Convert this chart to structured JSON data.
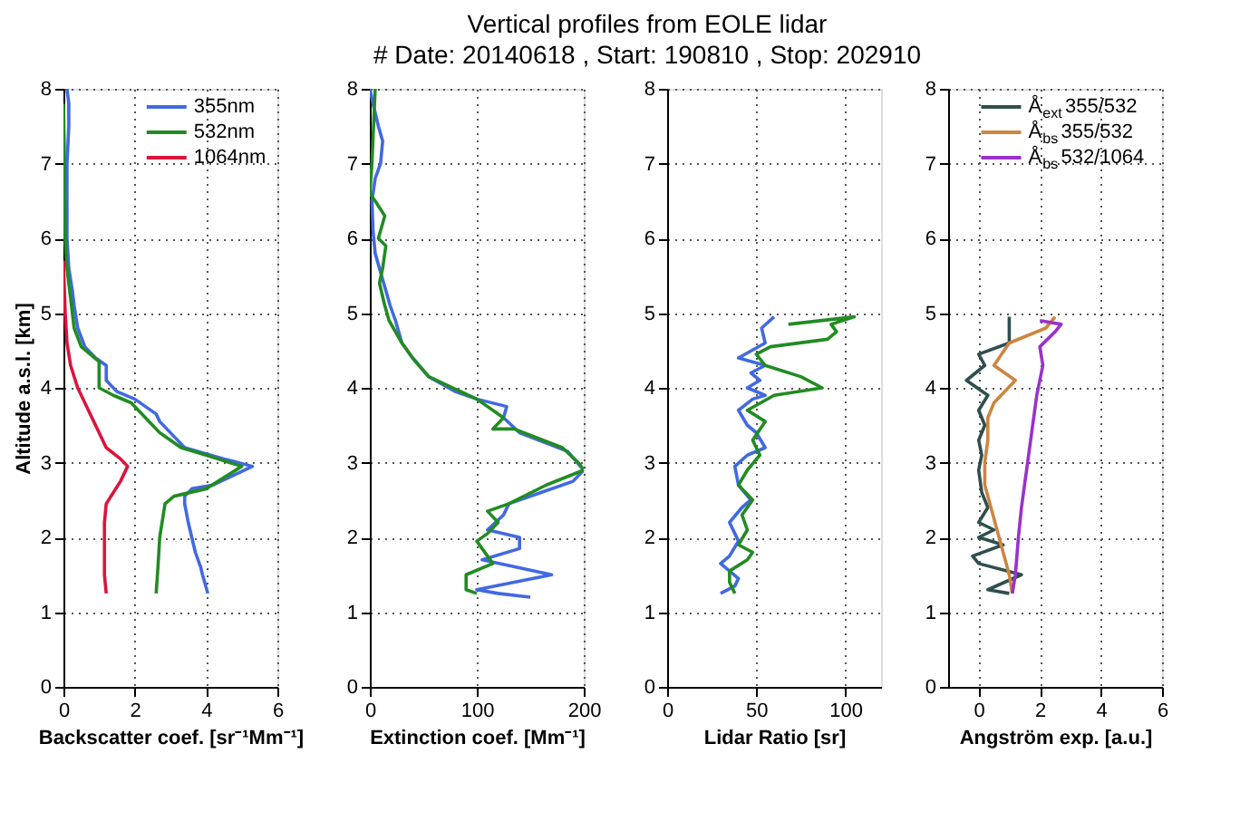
{
  "chart_data": [
    {
      "type": "other",
      "title": "Vertical profiles from EOLE lidar",
      "subtitle": "# Date:  20140618 , Start: 190810 , Stop: 202910"
    },
    {
      "type": "line",
      "xlabel": "Backscatter coef. [sr⁻¹Mm⁻¹]",
      "ylabel": "Altitude a.s.l. [km]",
      "xlim": [
        0,
        6
      ],
      "xticks": [
        0,
        2,
        4,
        6
      ],
      "ylim": [
        0,
        8
      ],
      "yticks": [
        0,
        1,
        2,
        3,
        4,
        5,
        6,
        7,
        8
      ],
      "grid": true,
      "legend": "top right",
      "series": [
        {
          "name": "355nm",
          "color": "#4169e1",
          "x": [
            4.05,
            3.9,
            3.85,
            3.7,
            3.6,
            3.5,
            3.4,
            3.4,
            3.6,
            4.2,
            5.3,
            4.5,
            3.4,
            3.1,
            2.7,
            2.6,
            2.0,
            1.5,
            1.2,
            1.2,
            0.9,
            0.6,
            0.4,
            0.3,
            0.25,
            0.15,
            0.1,
            0.1,
            0.1,
            0.15,
            0.15,
            0.1
          ],
          "values": [
            1.25,
            1.5,
            1.6,
            1.8,
            2.0,
            2.2,
            2.45,
            2.55,
            2.65,
            2.7,
            2.95,
            3.05,
            3.2,
            3.35,
            3.55,
            3.65,
            3.85,
            3.95,
            4.1,
            4.3,
            4.4,
            4.55,
            4.8,
            5.1,
            5.3,
            5.6,
            6.0,
            6.5,
            7.0,
            7.5,
            7.8,
            8.0
          ]
        },
        {
          "name": "532nm",
          "color": "#228b22",
          "x": [
            2.6,
            2.65,
            2.7,
            2.8,
            2.85,
            3.1,
            4.0,
            5.0,
            4.0,
            3.3,
            2.7,
            2.3,
            1.9,
            1.4,
            1.0,
            1.0,
            1.0,
            0.5,
            0.3,
            0.2,
            0.1,
            0.05,
            0.03,
            0.0
          ],
          "values": [
            1.25,
            1.6,
            2.0,
            2.3,
            2.45,
            2.55,
            2.65,
            2.95,
            3.1,
            3.2,
            3.4,
            3.6,
            3.8,
            3.9,
            4.0,
            4.2,
            4.35,
            4.55,
            4.8,
            5.2,
            5.6,
            6.0,
            7.0,
            7.8
          ]
        },
        {
          "name": "1064nm",
          "color": "#dc143c",
          "x": [
            1.2,
            1.15,
            1.15,
            1.15,
            1.15,
            1.2,
            1.4,
            1.6,
            1.8,
            1.6,
            1.2,
            1.0,
            0.8,
            0.6,
            0.4,
            0.2,
            0.1,
            0.05,
            0.02,
            0.0
          ],
          "values": [
            1.25,
            1.5,
            1.75,
            2.0,
            2.2,
            2.45,
            2.6,
            2.75,
            2.95,
            3.05,
            3.2,
            3.4,
            3.6,
            3.8,
            4.0,
            4.3,
            4.6,
            5.0,
            5.4,
            5.7
          ]
        }
      ]
    },
    {
      "type": "line",
      "xlabel": "Extinction coef. [Mm⁻¹]",
      "xlim": [
        0,
        200
      ],
      "xticks": [
        0,
        100,
        200
      ],
      "ylim": [
        0,
        8
      ],
      "yticks": [
        0,
        1,
        2,
        3,
        4,
        5,
        6,
        7,
        8
      ],
      "grid": true,
      "series": [
        {
          "color": "#4169e1",
          "x": [
            150,
            120,
            100,
            170,
            105,
            140,
            140,
            110,
            125,
            130,
            160,
            190,
            200,
            185,
            140,
            125,
            128,
            100,
            80,
            55,
            40,
            30,
            24,
            19,
            13,
            5,
            3,
            2,
            5,
            10,
            12,
            8,
            3,
            0
          ],
          "values": [
            1.2,
            1.25,
            1.3,
            1.5,
            1.7,
            1.85,
            2.0,
            2.1,
            2.3,
            2.45,
            2.6,
            2.75,
            2.9,
            3.15,
            3.4,
            3.6,
            3.75,
            3.85,
            3.95,
            4.15,
            4.4,
            4.6,
            4.9,
            5.1,
            5.4,
            5.8,
            6.1,
            6.5,
            6.8,
            7.0,
            7.3,
            7.5,
            7.8,
            8.0
          ]
        },
        {
          "color": "#228b22",
          "x": [
            100,
            90,
            90,
            115,
            110,
            100,
            110,
            120,
            110,
            130,
            165,
            200,
            195,
            180,
            135,
            115,
            125,
            110,
            100,
            70,
            55,
            40,
            30,
            18,
            14,
            9,
            12,
            15,
            8,
            14,
            5,
            0,
            2,
            5
          ],
          "values": [
            1.25,
            1.3,
            1.5,
            1.65,
            1.75,
            1.95,
            2.05,
            2.2,
            2.35,
            2.45,
            2.7,
            2.9,
            3.0,
            3.2,
            3.45,
            3.45,
            3.6,
            3.75,
            3.85,
            4.05,
            4.15,
            4.4,
            4.6,
            4.9,
            5.1,
            5.4,
            5.6,
            5.9,
            6.0,
            6.3,
            6.5,
            6.6,
            7.0,
            8.0
          ]
        }
      ]
    },
    {
      "type": "line",
      "xlabel": "Lidar Ratio [sr]",
      "xlim": [
        0,
        120
      ],
      "xticks": [
        0,
        50,
        100
      ],
      "ylim": [
        0,
        8
      ],
      "yticks": [
        0,
        1,
        2,
        3,
        4,
        5,
        6,
        7,
        8
      ],
      "grid": true,
      "series": [
        {
          "color": "#4169e1",
          "x": [
            30,
            38,
            40,
            30,
            35,
            40,
            35,
            42,
            47,
            40,
            38,
            45,
            55,
            50,
            45,
            40,
            48,
            55,
            45,
            52,
            47,
            55,
            40,
            55,
            53,
            60
          ],
          "values": [
            1.25,
            1.35,
            1.45,
            1.65,
            1.75,
            1.95,
            2.2,
            2.4,
            2.5,
            2.7,
            2.95,
            3.1,
            3.2,
            3.4,
            3.5,
            3.7,
            3.85,
            3.9,
            4.0,
            4.1,
            4.2,
            4.3,
            4.4,
            4.6,
            4.8,
            4.95
          ]
        },
        {
          "color": "#228b22",
          "x": [
            38,
            35,
            35,
            45,
            48,
            40,
            45,
            42,
            48,
            40,
            45,
            52,
            48,
            55,
            45,
            60,
            87,
            75,
            55,
            50,
            58,
            90,
            95,
            92,
            105,
            68
          ],
          "values": [
            1.25,
            1.4,
            1.55,
            1.7,
            1.8,
            1.9,
            2.1,
            2.3,
            2.5,
            2.7,
            2.9,
            3.1,
            3.3,
            3.55,
            3.7,
            3.9,
            4.0,
            4.15,
            4.3,
            4.45,
            4.55,
            4.65,
            4.75,
            4.85,
            4.95,
            4.85
          ]
        }
      ]
    },
    {
      "type": "line",
      "xlabel": "Angström exp. [a.u.]",
      "xlim": [
        -1,
        6
      ],
      "xticks": [
        0,
        2,
        4,
        6
      ],
      "ylim": [
        0,
        8
      ],
      "yticks": [
        0,
        1,
        2,
        3,
        4,
        5,
        6,
        7,
        8
      ],
      "grid": true,
      "legend": "top right",
      "series": [
        {
          "name": "Å$_{ext}$355/532",
          "color": "#2f4f4f",
          "x": [
            1.0,
            0.3,
            1.4,
            0.0,
            -0.2,
            0.8,
            0.0,
            0.5,
            0.0,
            0.3,
            0.1,
            0.0,
            0.1,
            0.0,
            0.2,
            0.0,
            0.3,
            -0.4,
            0.2,
            0.0,
            1.0,
            1.0,
            1.0
          ],
          "values": [
            1.25,
            1.3,
            1.5,
            1.65,
            1.75,
            1.9,
            2.0,
            2.1,
            2.2,
            2.4,
            2.6,
            2.9,
            3.1,
            3.3,
            3.5,
            3.7,
            3.9,
            4.1,
            4.3,
            4.45,
            4.6,
            4.8,
            4.95
          ]
        },
        {
          "name": "Å$_{bs}$355/532",
          "color": "#cd853f",
          "x": [
            1.1,
            1.0,
            0.8,
            0.6,
            0.4,
            0.2,
            0.2,
            0.3,
            0.3,
            0.5,
            1.2,
            0.5,
            1.0,
            2.2,
            2.5
          ],
          "values": [
            1.25,
            1.5,
            1.8,
            2.1,
            2.4,
            2.7,
            3.0,
            3.3,
            3.6,
            3.8,
            4.1,
            4.3,
            4.6,
            4.8,
            4.95
          ]
        },
        {
          "name": "Å$_{bs}$532/1064",
          "color": "#9932cc",
          "x": [
            1.1,
            1.2,
            1.3,
            1.4,
            1.5,
            1.6,
            1.7,
            1.8,
            1.9,
            2.0,
            2.1,
            2.0,
            2.5,
            2.7,
            2.0
          ],
          "values": [
            1.25,
            1.5,
            2.0,
            2.4,
            2.7,
            3.0,
            3.3,
            3.6,
            3.9,
            4.1,
            4.3,
            4.55,
            4.75,
            4.85,
            4.9
          ]
        }
      ]
    }
  ]
}
